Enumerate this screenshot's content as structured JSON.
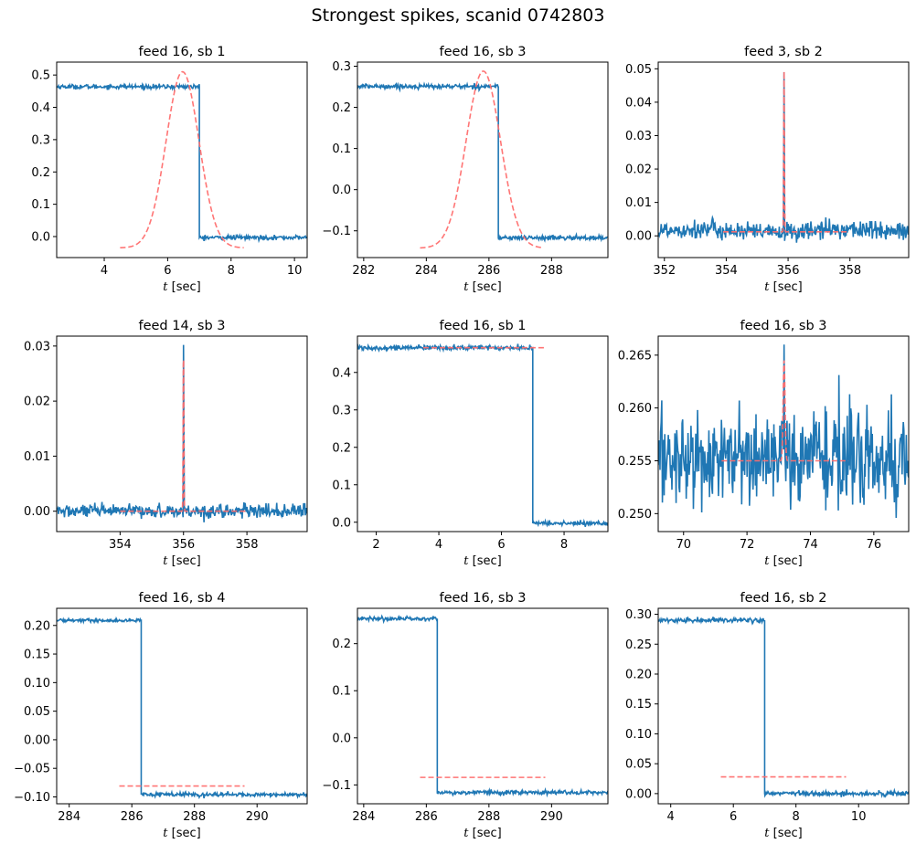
{
  "figure": {
    "title": "Strongest spikes, scanid 0742803"
  },
  "colors": {
    "signal": "#1f77b4",
    "fit": "#ff6e6e",
    "axes": "#000000"
  },
  "chart_data": [
    {
      "type": "line",
      "title": "feed 16, sb 1",
      "xlabel": "t [sec]",
      "xlim": [
        2.5,
        10.4
      ],
      "ylim": [
        -0.065,
        0.54
      ],
      "xticks": [
        4,
        6,
        8,
        10
      ],
      "xtick_labels": [
        "4",
        "6",
        "8",
        "10"
      ],
      "yticks": [
        0.0,
        0.1,
        0.2,
        0.3,
        0.4,
        0.5
      ],
      "ytick_labels": [
        "0.0",
        "0.1",
        "0.2",
        "0.3",
        "0.4",
        "0.5"
      ],
      "signal": {
        "kind": "step",
        "x_start": 2.5,
        "x_end": 10.4,
        "x_step": 7.0,
        "before": 0.464,
        "after": -0.003,
        "noise": 0.0035
      },
      "fit": {
        "kind": "gaussian",
        "x_start": 4.5,
        "x_end": 8.4,
        "center": 6.47,
        "amplitude": 0.545,
        "sigma": 0.52,
        "baseline": -0.035
      }
    },
    {
      "type": "line",
      "title": "feed 16, sb 3",
      "xlabel": "t [sec]",
      "xlim": [
        281.8,
        289.8
      ],
      "ylim": [
        -0.165,
        0.31
      ],
      "xticks": [
        282,
        284,
        286,
        288
      ],
      "xtick_labels": [
        "282",
        "284",
        "286",
        "288"
      ],
      "yticks": [
        -0.1,
        0.0,
        0.1,
        0.2,
        0.3
      ],
      "ytick_labels": [
        "−0.1",
        "0.0",
        "0.1",
        "0.2",
        "0.3"
      ],
      "signal": {
        "kind": "step",
        "x_start": 281.8,
        "x_end": 289.8,
        "x_step": 286.3,
        "before": 0.251,
        "after": -0.117,
        "noise": 0.0028
      },
      "fit": {
        "kind": "gaussian",
        "x_start": 283.8,
        "x_end": 287.75,
        "center": 285.82,
        "amplitude": 0.43,
        "sigma": 0.55,
        "baseline": -0.142
      }
    },
    {
      "type": "line",
      "title": "feed 3, sb 2",
      "xlabel": "t [sec]",
      "xlim": [
        351.8,
        359.9
      ],
      "ylim": [
        -0.0065,
        0.052
      ],
      "xticks": [
        352,
        354,
        356,
        358
      ],
      "xtick_labels": [
        "352",
        "354",
        "356",
        "358"
      ],
      "yticks": [
        0.0,
        0.01,
        0.02,
        0.03,
        0.04,
        0.05
      ],
      "ytick_labels": [
        "0.00",
        "0.01",
        "0.02",
        "0.03",
        "0.04",
        "0.05"
      ],
      "signal": {
        "kind": "spike",
        "x_start": 351.8,
        "x_end": 359.9,
        "center": 355.87,
        "peak": 0.049,
        "level": 0.0015,
        "noise": 0.0014,
        "drift": 0.0005
      },
      "fit": {
        "kind": "gaussian",
        "x_start": 353.9,
        "x_end": 357.9,
        "center": 355.87,
        "amplitude": 0.048,
        "sigma": 0.012,
        "baseline": 0.0012
      }
    },
    {
      "type": "line",
      "title": "feed 14, sb 3",
      "xlabel": "t [sec]",
      "xlim": [
        352.0,
        359.9
      ],
      "ylim": [
        -0.0037,
        0.0318
      ],
      "xticks": [
        354,
        356,
        358
      ],
      "xtick_labels": [
        "354",
        "356",
        "358"
      ],
      "yticks": [
        0.0,
        0.01,
        0.02,
        0.03
      ],
      "ytick_labels": [
        "0.00",
        "0.01",
        "0.02",
        "0.03"
      ],
      "signal": {
        "kind": "spike",
        "x_start": 352.0,
        "x_end": 359.9,
        "center": 356.0,
        "peak": 0.0302,
        "level": 0.0,
        "noise": 0.0006,
        "drift": 0.0
      },
      "fit": {
        "kind": "gaussian",
        "x_start": 354.0,
        "x_end": 357.95,
        "center": 356.0,
        "amplitude": 0.03,
        "sigma": 0.011,
        "baseline": 0.0
      }
    },
    {
      "type": "line",
      "title": "feed 16, sb 1",
      "xlabel": "t [sec]",
      "xlim": [
        1.4,
        9.4
      ],
      "ylim": [
        -0.025,
        0.497
      ],
      "xticks": [
        2,
        4,
        6,
        8
      ],
      "xtick_labels": [
        "2",
        "4",
        "6",
        "8"
      ],
      "yticks": [
        0.0,
        0.1,
        0.2,
        0.3,
        0.4
      ],
      "ytick_labels": [
        "0.0",
        "0.1",
        "0.2",
        "0.3",
        "0.4"
      ],
      "signal": {
        "kind": "step",
        "x_start": 1.4,
        "x_end": 9.4,
        "x_step": 7.0,
        "before": 0.466,
        "after": -0.003,
        "noise": 0.0032
      },
      "fit": {
        "kind": "flat",
        "x_start": 3.5,
        "x_end": 7.4,
        "value": 0.466
      }
    },
    {
      "type": "line",
      "title": "feed 16, sb 3",
      "xlabel": "t [sec]",
      "xlim": [
        69.2,
        77.1
      ],
      "ylim": [
        0.2483,
        0.2668
      ],
      "xticks": [
        70,
        72,
        74,
        76
      ],
      "xtick_labels": [
        "70",
        "72",
        "74",
        "76"
      ],
      "yticks": [
        0.25,
        0.255,
        0.26,
        0.265
      ],
      "ytick_labels": [
        "0.250",
        "0.255",
        "0.260",
        "0.265"
      ],
      "signal": {
        "kind": "spike",
        "x_start": 69.2,
        "x_end": 77.1,
        "center": 73.17,
        "peak": 0.266,
        "level": 0.2552,
        "noise": 0.0022,
        "drift": 0.0
      },
      "fit": {
        "kind": "gaussian",
        "x_start": 71.2,
        "x_end": 75.2,
        "center": 73.17,
        "amplitude": 0.0095,
        "sigma": 0.03,
        "baseline": 0.255
      }
    },
    {
      "type": "line",
      "title": "feed 16, sb 4",
      "xlabel": "t [sec]",
      "xlim": [
        283.6,
        291.6
      ],
      "ylim": [
        -0.112,
        0.23
      ],
      "xticks": [
        284,
        286,
        288,
        290
      ],
      "xtick_labels": [
        "284",
        "286",
        "288",
        "290"
      ],
      "yticks": [
        -0.1,
        -0.05,
        0.0,
        0.05,
        0.1,
        0.15,
        0.2
      ],
      "ytick_labels": [
        "−0.10",
        "−0.05",
        "0.00",
        "0.05",
        "0.10",
        "0.15",
        "0.20"
      ],
      "signal": {
        "kind": "step",
        "x_start": 283.6,
        "x_end": 291.6,
        "x_step": 286.3,
        "before": 0.209,
        "after": -0.096,
        "noise": 0.0015
      },
      "fit": {
        "kind": "flat",
        "x_start": 285.6,
        "x_end": 289.6,
        "value": -0.081
      }
    },
    {
      "type": "line",
      "title": "feed 16, sb 3",
      "xlabel": "t [sec]",
      "xlim": [
        283.8,
        291.8
      ],
      "ylim": [
        -0.14,
        0.275
      ],
      "xticks": [
        284,
        286,
        288,
        290
      ],
      "xtick_labels": [
        "284",
        "286",
        "288",
        "290"
      ],
      "yticks": [
        -0.1,
        0.0,
        0.1,
        0.2
      ],
      "ytick_labels": [
        "−0.1",
        "0.0",
        "0.1",
        "0.2"
      ],
      "signal": {
        "kind": "step",
        "x_start": 283.8,
        "x_end": 291.8,
        "x_step": 286.35,
        "before": 0.253,
        "after": -0.116,
        "noise": 0.0022
      },
      "fit": {
        "kind": "flat",
        "x_start": 285.8,
        "x_end": 289.8,
        "value": -0.084
      }
    },
    {
      "type": "line",
      "title": "feed 16, sb 2",
      "xlabel": "t [sec]",
      "xlim": [
        3.6,
        11.6
      ],
      "ylim": [
        -0.017,
        0.31
      ],
      "xticks": [
        4,
        6,
        8,
        10
      ],
      "xtick_labels": [
        "4",
        "6",
        "8",
        "10"
      ],
      "yticks": [
        0.0,
        0.05,
        0.1,
        0.15,
        0.2,
        0.25,
        0.3
      ],
      "ytick_labels": [
        "0.00",
        "0.05",
        "0.10",
        "0.15",
        "0.20",
        "0.25",
        "0.30"
      ],
      "signal": {
        "kind": "step",
        "x_start": 3.6,
        "x_end": 11.6,
        "x_step": 7.0,
        "before": 0.29,
        "after": 0.0,
        "noise": 0.002
      },
      "fit": {
        "kind": "flat",
        "x_start": 5.6,
        "x_end": 9.6,
        "value": 0.028
      }
    }
  ]
}
